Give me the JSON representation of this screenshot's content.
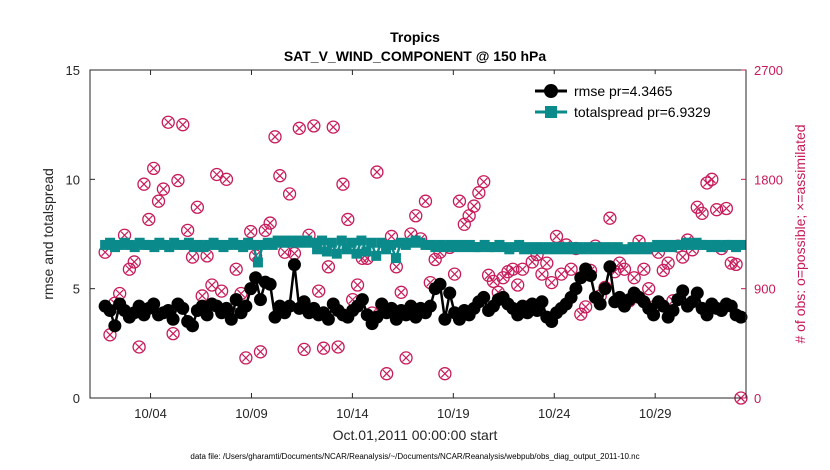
{
  "chart_data": {
    "type": "line",
    "title": "Tropics",
    "subtitle": "SAT_V_WIND_COMPONENT @ 150 hPa",
    "xlabel": "Oct.01,2011 00:00:00 start",
    "ylabel": "rmse and totalspread",
    "y2label": "# of obs: o=possible; ×=assimilated",
    "footnote": "data file: /Users/gharamti/Documents/NCAR/Reanalysis/~/Documents/NCAR/Reanalysis/webpub/obs_diag_output_2011-10.nc",
    "xlim": [
      1,
      33.5
    ],
    "ylim": [
      0,
      15
    ],
    "y2lim": [
      0,
      2700
    ],
    "xticks": [
      {
        "label": "10/04",
        "value": 4
      },
      {
        "label": "10/09",
        "value": 9
      },
      {
        "label": "10/14",
        "value": 14
      },
      {
        "label": "10/19",
        "value": 19
      },
      {
        "label": "10/24",
        "value": 24
      },
      {
        "label": "10/29",
        "value": 29
      }
    ],
    "yticks": [
      {
        "label": "0",
        "value": 0
      },
      {
        "label": "5",
        "value": 5
      },
      {
        "label": "10",
        "value": 10
      },
      {
        "label": "15",
        "value": 15
      }
    ],
    "y2ticks": [
      {
        "label": "0",
        "value": 0
      },
      {
        "label": "900",
        "value": 900
      },
      {
        "label": "1800",
        "value": 1800
      },
      {
        "label": "2700",
        "value": 2700
      }
    ],
    "legend_position": "top-right",
    "series": [
      {
        "name": "rmse",
        "legend": "rmse pr=4.3465",
        "color": "#000000",
        "marker": "circle",
        "axis": "left",
        "values": [
          4.2,
          4.0,
          3.3,
          4.3,
          4.0,
          3.7,
          3.9,
          4.2,
          3.8,
          4.1,
          4.3,
          3.8,
          3.9,
          4.0,
          3.6,
          4.3,
          4.1,
          3.5,
          3.3,
          4.0,
          4.2,
          3.8,
          4.3,
          4.2,
          3.9,
          4.1,
          3.6,
          4.5,
          3.9,
          4.2,
          5.0,
          5.5,
          4.5,
          5.3,
          5.2,
          3.7,
          4.2,
          3.9,
          4.2,
          6.1,
          4.1,
          4.4,
          3.9,
          4.1,
          3.8,
          3.9,
          3.6,
          4.3,
          4.0,
          3.8,
          3.7,
          4.0,
          4.2,
          4.5,
          3.8,
          3.4,
          3.7,
          4.3,
          3.9,
          4.1,
          3.6,
          4.0,
          3.8,
          4.2,
          3.7,
          4.1,
          3.9,
          4.2,
          5.0,
          5.2,
          3.6,
          4.8,
          3.9,
          3.6,
          4.0,
          3.8,
          4.1,
          4.4,
          4.6,
          4.0,
          4.2,
          4.5,
          4.6,
          4.3,
          4.1,
          3.8,
          4.2,
          3.9,
          4.3,
          4.0,
          4.4,
          3.7,
          3.5,
          3.9,
          4.1,
          4.3,
          4.6,
          5.0,
          5.5,
          5.9,
          5.6,
          4.6,
          4.3,
          5.0,
          6.0,
          4.4,
          4.6,
          4.2,
          4.5,
          4.8,
          4.6,
          4.4,
          4.1,
          3.8,
          4.4,
          4.2,
          3.7,
          4.0,
          4.5,
          4.9,
          4.2,
          4.4,
          4.8,
          4.1,
          3.8,
          4.3,
          4.1,
          4.0,
          4.3,
          4.2,
          3.8,
          3.7
        ]
      },
      {
        "name": "totalspread",
        "legend": "totalspread pr=6.9329",
        "color": "#0a8a8a",
        "marker": "square",
        "axis": "left",
        "values": [
          7.0,
          7.1,
          6.9,
          7.0,
          7.1,
          7.0,
          6.9,
          7.1,
          7.0,
          7.0,
          6.9,
          7.1,
          7.0,
          6.9,
          7.1,
          7.0,
          7.0,
          7.1,
          6.9,
          7.0,
          6.9,
          7.0,
          7.1,
          7.0,
          6.9,
          7.0,
          7.1,
          7.0,
          6.9,
          7.1,
          7.0,
          6.2,
          7.0,
          7.1,
          7.0,
          7.2,
          7.1,
          7.2,
          7.1,
          7.2,
          7.1,
          7.2,
          7.1,
          6.8,
          7.2,
          6.7,
          7.1,
          6.6,
          7.2,
          6.8,
          7.1,
          6.6,
          7.2,
          6.7,
          7.1,
          6.5,
          7.1,
          6.8,
          7.0,
          6.4,
          7.1,
          7.0,
          7.1,
          7.2,
          7.1,
          7.0,
          7.0,
          6.9,
          7.0,
          6.9,
          7.0,
          6.9,
          7.0,
          6.9,
          7.0,
          6.9,
          6.9,
          7.0,
          6.9,
          6.9,
          7.0,
          6.9,
          6.8,
          6.9,
          7.0,
          6.8,
          6.9,
          6.8,
          6.9,
          6.8,
          6.9,
          6.8,
          6.9,
          6.8,
          6.9,
          6.8,
          6.9,
          6.8,
          6.9,
          6.8,
          6.9,
          6.8,
          6.9,
          6.8,
          6.9,
          6.8,
          6.8,
          6.9,
          6.8,
          6.9,
          6.8,
          6.9,
          7.0,
          6.9,
          7.0,
          6.9,
          7.0,
          7.0,
          7.1,
          7.0,
          7.1,
          7.0,
          7.0,
          6.9,
          7.0,
          6.9,
          7.0,
          7.0,
          6.9,
          7.0
        ]
      },
      {
        "name": "obs_possible",
        "legend": "o=possible; ×=assimilated",
        "color": "#c71a5a",
        "marker": "circle-x",
        "axis": "right",
        "values": [
          1200,
          520,
          780,
          860,
          1340,
          1060,
          1120,
          420,
          1760,
          1470,
          1890,
          1620,
          1720,
          2270,
          530,
          1790,
          2250,
          1380,
          1160,
          1570,
          840,
          1170,
          930,
          1840,
          880,
          1800,
          700,
          1060,
          860,
          330,
          1370,
          1170,
          380,
          1380,
          1440,
          2150,
          1830,
          1200,
          1680,
          1190,
          2220,
          400,
          1340,
          2240,
          880,
          410,
          1080,
          2230,
          420,
          1760,
          1470,
          810,
          930,
          1150,
          1150,
          700,
          1860,
          770,
          200,
          1330,
          1080,
          870,
          330,
          1350,
          1500,
          1310,
          1620,
          950,
          1140,
          1200,
          200,
          1240,
          1020,
          1620,
          1430,
          1500,
          1580,
          1690,
          1780,
          1010,
          960,
          870,
          990,
          1040,
          1060,
          930,
          1060,
          750,
          1120,
          1180,
          1020,
          1110,
          950,
          1330,
          1020,
          1260,
          1060,
          1230,
          690,
          750,
          1050,
          1250,
          840,
          910,
          1480,
          1040,
          1110,
          1060,
          800,
          990,
          1290,
          1060,
          900,
          750,
          1200,
          1050,
          1110,
          800,
          1250,
          1160,
          1300,
          1220,
          1570,
          1520,
          1770,
          1800,
          1550,
          1230,
          1560,
          1110,
          1100,
          0
        ]
      }
    ]
  }
}
